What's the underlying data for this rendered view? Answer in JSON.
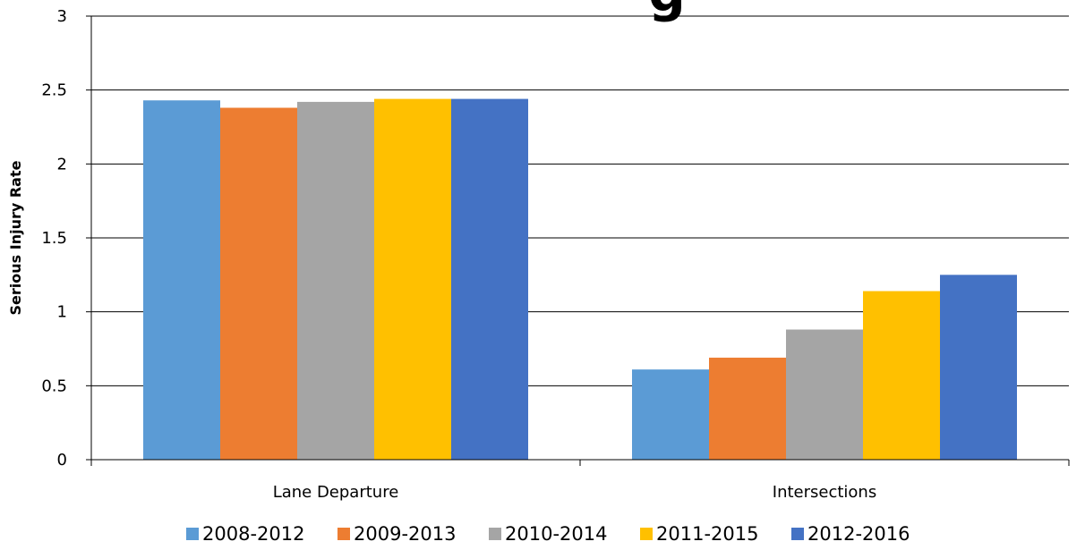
{
  "chart_data": {
    "type": "bar",
    "title": "g",
    "xlabel": "",
    "ylabel": "Serious Injury Rate",
    "ylim": [
      0,
      3
    ],
    "yticks": [
      "0",
      "0.5",
      "1",
      "1.5",
      "2",
      "2.5",
      "3"
    ],
    "grid": true,
    "legend_position": "bottom",
    "categories": [
      "Lane Departure",
      "Intersections"
    ],
    "series": [
      {
        "name": "2008-2012",
        "color": "#5B9BD5",
        "values": [
          2.43,
          0.61
        ]
      },
      {
        "name": "2009-2013",
        "color": "#ED7D31",
        "values": [
          2.38,
          0.69
        ]
      },
      {
        "name": "2010-2014",
        "color": "#A5A5A5",
        "values": [
          2.42,
          0.88
        ]
      },
      {
        "name": "2011-2015",
        "color": "#FFC000",
        "values": [
          2.44,
          1.14
        ]
      },
      {
        "name": "2012-2016",
        "color": "#4472C4",
        "values": [
          2.44,
          1.25
        ]
      }
    ]
  }
}
